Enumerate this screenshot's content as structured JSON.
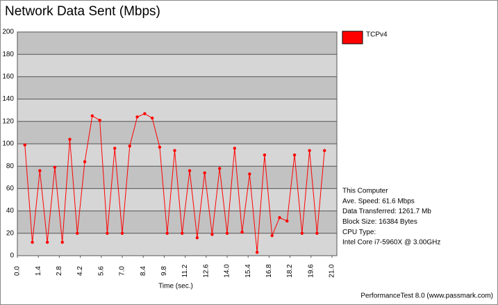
{
  "chart_data": {
    "type": "line",
    "title": "Network Data Sent (Mbps)",
    "x_label": "Time (sec.)",
    "x": [
      0.5,
      1.0,
      1.5,
      2.0,
      2.5,
      3.0,
      3.5,
      4.0,
      4.5,
      5.0,
      5.5,
      6.0,
      6.5,
      7.0,
      7.5,
      8.0,
      8.5,
      9.0,
      9.5,
      10.0,
      10.5,
      11.0,
      11.5,
      12.0,
      12.5,
      13.0,
      13.5,
      14.0,
      14.5,
      15.0,
      15.5,
      16.0,
      16.5,
      17.0,
      17.5,
      18.0,
      18.5,
      19.0,
      19.5,
      20.0,
      20.5
    ],
    "series": [
      {
        "name": "TCPv4",
        "color": "#ff0000",
        "values": [
          99,
          12,
          76,
          12,
          79,
          12,
          104,
          20,
          84,
          125,
          121,
          20,
          96,
          20,
          98,
          124,
          127,
          123,
          97,
          20,
          94,
          20,
          76,
          16,
          74,
          19,
          78,
          20,
          96,
          21,
          73,
          3,
          90,
          18,
          34,
          31,
          90,
          20,
          94,
          20,
          94
        ]
      }
    ],
    "xlim": [
      0,
      21
    ],
    "xticks": [
      {
        "value": 0,
        "label": "0.0"
      },
      1.4,
      2.8,
      4.2,
      5.6,
      {
        "value": 7,
        "label": "7.0"
      },
      8.4,
      9.8,
      11.2,
      12.6,
      {
        "value": 14,
        "label": "14.0"
      },
      15.4,
      16.8,
      18.2,
      19.6,
      {
        "value": 21,
        "label": "21.0"
      }
    ],
    "ylim": [
      0,
      200
    ],
    "yticks": [
      0,
      20,
      40,
      60,
      80,
      100,
      120,
      140,
      160,
      180,
      200
    ],
    "grid": true,
    "legend": "right",
    "info": [
      "This Computer",
      "Ave. Speed: 61.6 Mbps",
      "Data Transferred: 1261.7 Mb",
      "Block Size: 16384 Bytes",
      "CPU Type:",
      "Intel Core i7-5960X @ 3.00GHz"
    ],
    "footer": "PerformanceTest 8.0 (www.passmark.com)"
  }
}
